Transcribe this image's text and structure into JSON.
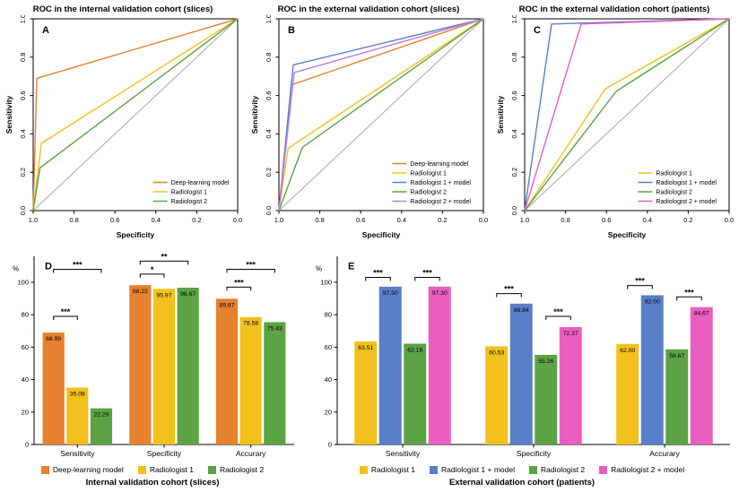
{
  "chart_data": [
    {
      "id": "A",
      "panel_label": "A",
      "type": "line",
      "title": "ROC in the internal validation cohort (slices)",
      "xlabel": "Specificity",
      "ylabel": "Sensitivity",
      "x_ticks": [
        "1.0",
        "0.8",
        "0.6",
        "0.4",
        "0.2",
        "0.0"
      ],
      "y_ticks": [
        "0.0",
        "0.2",
        "0.4",
        "0.6",
        "0.8",
        "1.0"
      ],
      "x_range": [
        1.0,
        0.0
      ],
      "y_range": [
        0.0,
        1.0
      ],
      "diagonal_color": "#A8A8A8",
      "legend_position": "bottom-right",
      "series": [
        {
          "name": "Deep-learning model",
          "color": "#E6812F",
          "points": [
            [
              1.0,
              0.0
            ],
            [
              0.9822,
              0.6899
            ],
            [
              0.0,
              1.0
            ]
          ]
        },
        {
          "name": "Radiologist 1",
          "color": "#F2C11E",
          "points": [
            [
              1.0,
              0.0
            ],
            [
              0.9597,
              0.3508
            ],
            [
              0.0,
              1.0
            ]
          ]
        },
        {
          "name": "Radiologist 2",
          "color": "#5BA345",
          "points": [
            [
              1.0,
              0.0
            ],
            [
              0.9667,
              0.2229
            ],
            [
              0.0,
              1.0
            ]
          ]
        }
      ]
    },
    {
      "id": "B",
      "panel_label": "B",
      "type": "line",
      "title": "ROC in the external validation cohort (slices)",
      "xlabel": "Specificity",
      "ylabel": "Sensitivity",
      "x_ticks": [
        "1.0",
        "0.8",
        "0.6",
        "0.4",
        "0.2",
        "0.0"
      ],
      "y_ticks": [
        "0.0",
        "0.2",
        "0.4",
        "0.6",
        "0.8",
        "1.0"
      ],
      "x_range": [
        1.0,
        0.0
      ],
      "y_range": [
        0.0,
        1.0
      ],
      "diagonal_color": "#A8A8A8",
      "legend_position": "bottom-right",
      "series": [
        {
          "name": "Deep-learning model",
          "color": "#E6812F",
          "points": [
            [
              1.0,
              0.0
            ],
            [
              0.94,
              0.655
            ],
            [
              0.0,
              1.0
            ]
          ]
        },
        {
          "name": "Radiologist 1",
          "color": "#F2C11E",
          "points": [
            [
              1.0,
              0.0
            ],
            [
              0.955,
              0.325
            ],
            [
              0.0,
              1.0
            ]
          ]
        },
        {
          "name": "Radiologist 1 + model",
          "color": "#5B7EC9",
          "points": [
            [
              1.0,
              0.0
            ],
            [
              0.93,
              0.76
            ],
            [
              0.0,
              1.0
            ]
          ]
        },
        {
          "name": "Radiologist 2",
          "color": "#5BA345",
          "points": [
            [
              1.0,
              0.0
            ],
            [
              0.885,
              0.33
            ],
            [
              0.0,
              1.0
            ]
          ]
        },
        {
          "name": "Radiologist 2 + model",
          "color": "#BD7DE8",
          "points": [
            [
              1.0,
              0.0
            ],
            [
              0.925,
              0.72
            ],
            [
              0.0,
              1.0
            ]
          ]
        }
      ]
    },
    {
      "id": "C",
      "panel_label": "C",
      "type": "line",
      "title": "ROC in the external validation cohort (patients)",
      "xlabel": "Specificity",
      "ylabel": "Sensitivity",
      "x_ticks": [
        "1.0",
        "0.8",
        "0.6",
        "0.4",
        "0.2",
        "0.0"
      ],
      "y_ticks": [
        "0.0",
        "0.2",
        "0.4",
        "0.6",
        "0.8",
        "1.0"
      ],
      "x_range": [
        1.0,
        0.0
      ],
      "y_range": [
        0.0,
        1.0
      ],
      "diagonal_color": "#A8A8A8",
      "legend_position": "bottom-right",
      "series": [
        {
          "name": "Radiologist 1",
          "color": "#F2C11E",
          "points": [
            [
              1.0,
              0.0
            ],
            [
              0.6053,
              0.6351
            ],
            [
              0.0,
              1.0
            ]
          ]
        },
        {
          "name": "Radiologist 1 + model",
          "color": "#5B7EC9",
          "points": [
            [
              1.0,
              0.0
            ],
            [
              0.8684,
              0.973
            ],
            [
              0.0,
              1.0
            ]
          ]
        },
        {
          "name": "Radiologist 2",
          "color": "#5BA345",
          "points": [
            [
              1.0,
              0.0
            ],
            [
              0.5526,
              0.6216
            ],
            [
              0.0,
              1.0
            ]
          ]
        },
        {
          "name": "Radiologist 2 + model",
          "color": "#EA5EC1",
          "points": [
            [
              1.0,
              0.0
            ],
            [
              0.7237,
              0.973
            ],
            [
              0.0,
              1.0
            ]
          ]
        }
      ]
    },
    {
      "id": "D",
      "panel_label": "D",
      "type": "bar",
      "unit": "%",
      "categories": [
        "Sensitivity",
        "Specificity",
        "Accurary"
      ],
      "y_ticks": [
        0,
        20,
        40,
        60,
        80,
        100
      ],
      "ylim": [
        0,
        100
      ],
      "axis_title": "Internal validation cohort (slices)",
      "legend_position": "bottom",
      "series": [
        {
          "name": "Deep-learning model",
          "color": "#E6812F",
          "values": [
            68.99,
            98.22,
            89.87
          ]
        },
        {
          "name": "Radiologist 1",
          "color": "#F2C11E",
          "values": [
            35.08,
            95.97,
            78.58
          ]
        },
        {
          "name": "Radiologist 2",
          "color": "#5BA345",
          "values": [
            22.29,
            96.67,
            75.43
          ]
        }
      ],
      "brackets": [
        {
          "group": 0,
          "from": 0,
          "to": 1,
          "label": "***",
          "y": 79
        },
        {
          "group": 0,
          "from": 0,
          "to": 2,
          "label": "***",
          "y": 108
        },
        {
          "group": 1,
          "from": 0,
          "to": 1,
          "label": "*",
          "y": 105
        },
        {
          "group": 1,
          "from": 0,
          "to": 2,
          "label": "**",
          "y": 113
        },
        {
          "group": 2,
          "from": 0,
          "to": 1,
          "label": "***",
          "y": 97
        },
        {
          "group": 2,
          "from": 0,
          "to": 2,
          "label": "***",
          "y": 108
        }
      ]
    },
    {
      "id": "E",
      "panel_label": "E",
      "type": "bar",
      "unit": "%",
      "categories": [
        "Sensitivity",
        "Specificity",
        "Accurary"
      ],
      "y_ticks": [
        0,
        20,
        40,
        60,
        80,
        100
      ],
      "ylim": [
        0,
        100
      ],
      "axis_title": "External validation cohort (patients)",
      "legend_position": "bottom",
      "series": [
        {
          "name": "Radiologist 1",
          "color": "#F2C11E",
          "values": [
            63.51,
            60.53,
            62.0
          ]
        },
        {
          "name": "Radiologist 1 + model",
          "color": "#5B7EC9",
          "values": [
            97.3,
            86.84,
            92.0
          ]
        },
        {
          "name": "Radiologist 2",
          "color": "#5BA345",
          "values": [
            62.16,
            55.26,
            58.67
          ]
        },
        {
          "name": "Radiologist 2 + model",
          "color": "#EA5EC1",
          "values": [
            97.3,
            72.37,
            84.67
          ]
        }
      ],
      "brackets": [
        {
          "group": 0,
          "from": 0,
          "to": 1,
          "label": "***",
          "y": 103
        },
        {
          "group": 0,
          "from": 2,
          "to": 3,
          "label": "***",
          "y": 103
        },
        {
          "group": 1,
          "from": 0,
          "to": 1,
          "label": "***",
          "y": 93
        },
        {
          "group": 1,
          "from": 2,
          "to": 3,
          "label": "***",
          "y": 79
        },
        {
          "group": 2,
          "from": 0,
          "to": 1,
          "label": "***",
          "y": 98
        },
        {
          "group": 2,
          "from": 2,
          "to": 3,
          "label": "***",
          "y": 91
        }
      ]
    }
  ]
}
